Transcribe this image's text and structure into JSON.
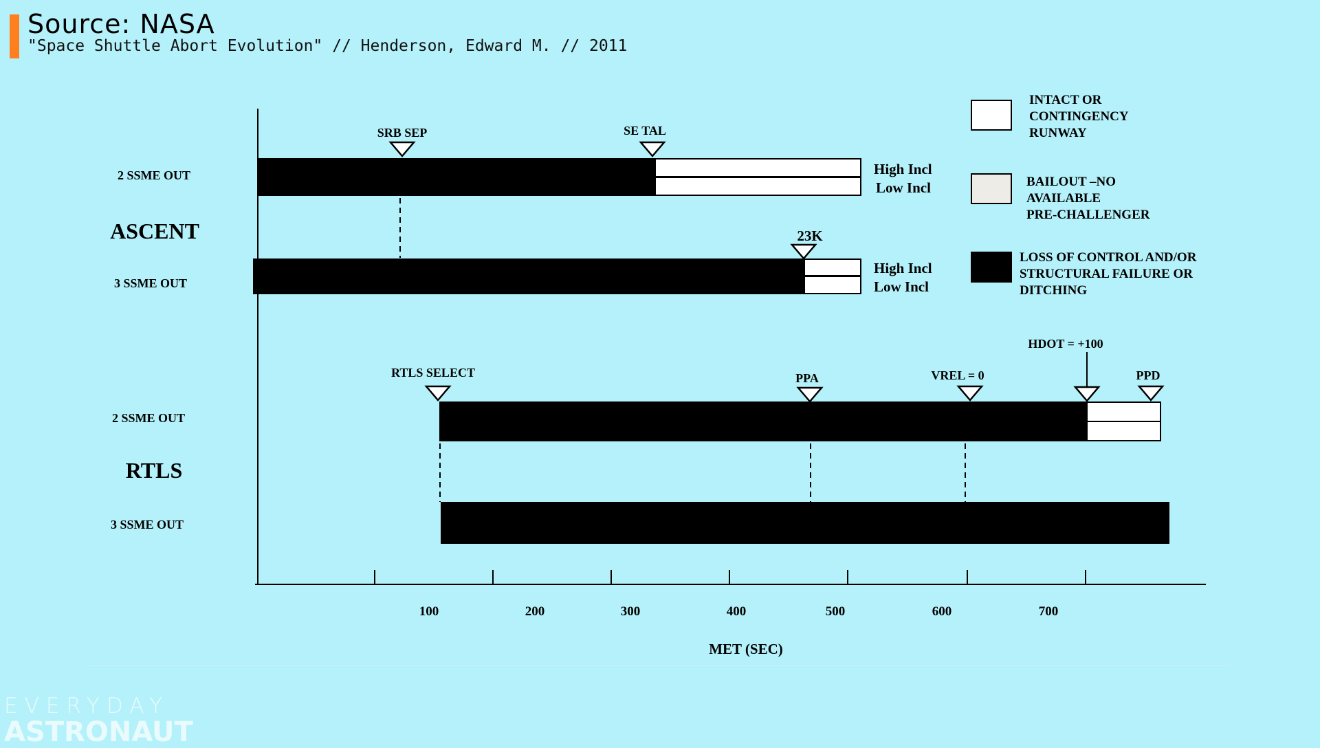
{
  "header": {
    "title": "Source: NASA",
    "subtitle": "\"Space Shuttle Abort Evolution\" // Henderson, Edward M. // 2011",
    "accent_color": "#ff7f1f",
    "background_color": "#b5f1fa"
  },
  "chart_data": {
    "type": "gantt",
    "xlabel": "MET (SEC)",
    "x_ticks": [
      "100",
      "200",
      "300",
      "400",
      "500",
      "600",
      "700"
    ],
    "sections": [
      {
        "label": "ASCENT",
        "rows": [
          "2 SSME OUT",
          "3 SSME OUT"
        ]
      },
      {
        "label": "RTLS",
        "rows": [
          "2 SSME OUT",
          "3 SSME OUT"
        ]
      }
    ],
    "bar_side_labels": [
      "High Incl",
      "Low Incl",
      "High Incl",
      "Low Incl"
    ],
    "markers": [
      "SRB SEP",
      "SE TAL",
      "23K",
      "RTLS SELECT",
      "PPA",
      "VREL = 0",
      "HDOT = +100",
      "PPD"
    ],
    "legend": [
      {
        "label": "INTACT OR\nCONTINGENCY\nRUNWAY",
        "color": "#ffffff"
      },
      {
        "label": "BAILOUT –NO\nAVAILABLE\n PRE-CHALLENGER",
        "color": "#eeece6"
      },
      {
        "label": "LOSS OF CONTROL AND/OR\nSTRUCTURAL FAILURE OR\nDITCHING",
        "color": "#000000"
      }
    ]
  },
  "branding": {
    "top": "EVERYDAY",
    "bottom": "ASTRONAUT"
  }
}
